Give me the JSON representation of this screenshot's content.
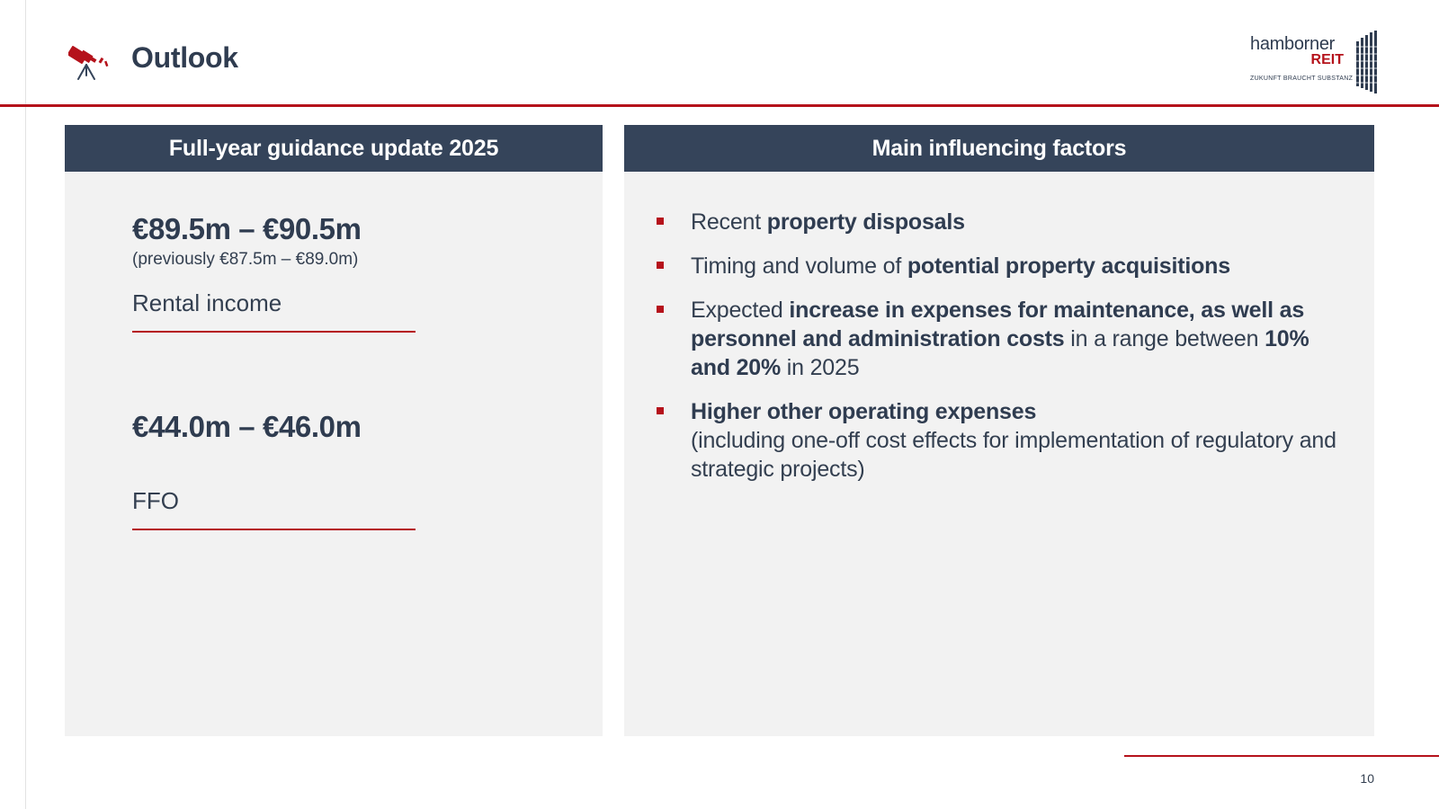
{
  "header": {
    "title": "Outlook",
    "icon": "telescope-icon",
    "logo": {
      "name": "hamborner",
      "suffix": "REIT",
      "tagline": "ZUKUNFT BRAUCHT SUBSTANZ"
    }
  },
  "colors": {
    "accent": "#b5121b",
    "header_fill": "#35445a",
    "panel_fill": "#f2f2f2",
    "text": "#333f50"
  },
  "left_panel": {
    "title": "Full-year guidance update 2025",
    "metrics": [
      {
        "value": "€89.5m – €90.5m",
        "previous": "(previously €87.5m – €89.0m)",
        "label": "Rental income"
      },
      {
        "value": "€44.0m – €46.0m",
        "previous": "",
        "label": "FFO"
      }
    ]
  },
  "right_panel": {
    "title": "Main influencing factors",
    "factors": [
      {
        "pre": "Recent ",
        "bold": "property disposals"
      },
      {
        "pre": "Timing and volume of ",
        "bold": "potential property acquisitions"
      },
      {
        "pre": "Expected ",
        "bold": "increase in expenses for maintenance, as well as personnel and administration costs",
        "mid": " in a range between ",
        "bold2": "10% and 20%",
        "post": " in 2025"
      },
      {
        "bold": "Higher other operating expenses",
        "sub": "(including one-off cost effects for implementation of regulatory and strategic projects)"
      }
    ]
  },
  "footer": {
    "page_number": "10"
  }
}
